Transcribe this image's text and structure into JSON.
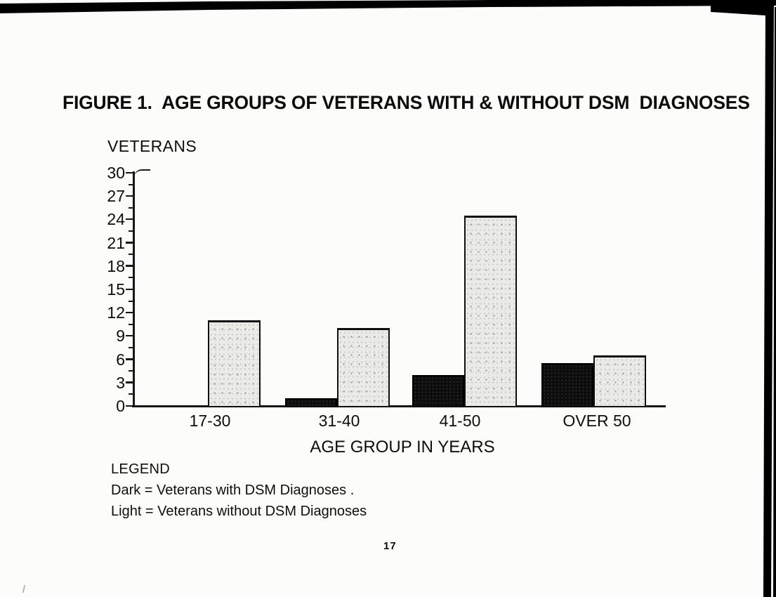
{
  "page": {
    "title": "FIGURE 1.  AGE GROUPS OF VETERANS WITH & WITHOUT DSM  DIAGNOSES",
    "page_number": "17"
  },
  "chart_data": {
    "type": "bar",
    "title": "FIGURE 1.  AGE GROUPS OF VETERANS WITH & WITHOUT DSM  DIAGNOSES",
    "ylabel": "VETERANS",
    "xlabel": "AGE GROUP IN YEARS",
    "categories": [
      "17-30",
      "31-40",
      "41-50",
      "OVER 50"
    ],
    "series": [
      {
        "name": "Veterans with DSM Diagnoses",
        "style": "dark",
        "values": [
          0,
          1,
          4,
          5.5
        ]
      },
      {
        "name": "Veterans without DSM Diagnoses",
        "style": "light",
        "values": [
          11,
          10,
          24.5,
          6.5
        ]
      }
    ],
    "ylim": [
      0,
      30
    ],
    "yticks": [
      0,
      3,
      6,
      9,
      12,
      15,
      18,
      21,
      24,
      27,
      30
    ],
    "ytick_minor_step": 1.5,
    "grid": false,
    "legend": {
      "heading": "LEGEND",
      "position": "below-left",
      "entries": [
        {
          "key": "Dark",
          "label": "Dark = Veterans with DSM Diagnoses ."
        },
        {
          "key": "Light",
          "label": "Light = Veterans without DSM Diagnoses"
        }
      ]
    }
  },
  "colors": {
    "dark_bar": "#0d0d0d",
    "light_bar": "#eaeae7",
    "axis": "#161616",
    "background": "#fcfcfa",
    "scan_band": "#000000"
  }
}
